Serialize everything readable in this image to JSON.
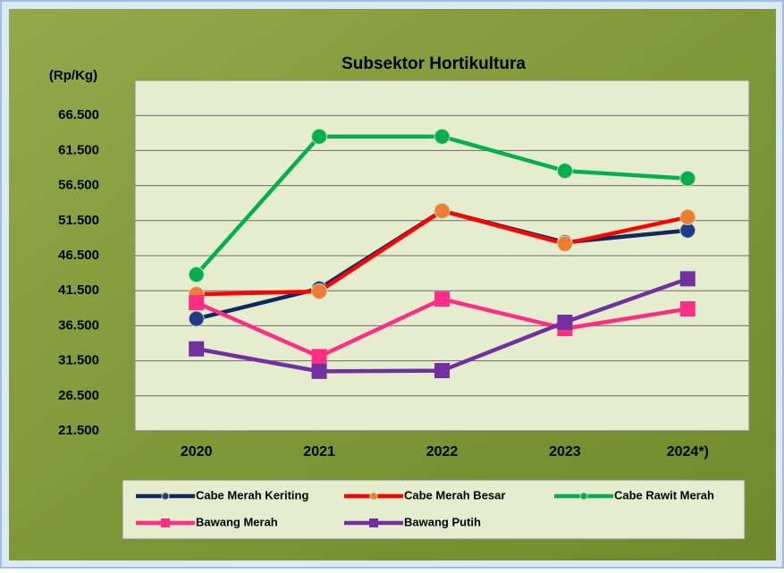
{
  "chart_data": {
    "type": "line",
    "title": "Subsektor Hortikultura",
    "ylabel": "(Rp/Kg)",
    "categories": [
      "2020",
      "2021",
      "2022",
      "2023",
      "2024*)"
    ],
    "ylim": [
      21500,
      71500
    ],
    "yticks": [
      {
        "value": 21500,
        "label": "21.500"
      },
      {
        "value": 26500,
        "label": "26.500"
      },
      {
        "value": 31500,
        "label": "31.500"
      },
      {
        "value": 36500,
        "label": "36.500"
      },
      {
        "value": 41500,
        "label": "41.500"
      },
      {
        "value": 46500,
        "label": "46.500"
      },
      {
        "value": 51500,
        "label": "51.500"
      },
      {
        "value": 56500,
        "label": "56.500"
      },
      {
        "value": 61500,
        "label": "61.500"
      },
      {
        "value": 66500,
        "label": "66.500"
      }
    ],
    "grid": true,
    "series": [
      {
        "name": "Cabe Merah Keriting",
        "color": "#0d2a5e",
        "marker": "circle",
        "marker_color": "#1f3c88",
        "values": [
          37500,
          41800,
          52900,
          48400,
          50100
        ]
      },
      {
        "name": "Cabe Merah Besar",
        "color": "#ff0000",
        "marker": "circle",
        "marker_color": "#ed7d31",
        "values": [
          41000,
          41400,
          52900,
          48200,
          52000
        ]
      },
      {
        "name": "Cabe Rawit Merah",
        "color": "#00b050",
        "marker": "circle",
        "marker_color": "#00b050",
        "values": [
          43800,
          63500,
          63500,
          58600,
          57500
        ]
      },
      {
        "name": "Bawang Merah",
        "color": "#ff2d84",
        "marker": "square",
        "marker_color": "#ff2d84",
        "values": [
          39800,
          32100,
          40300,
          36100,
          38900
        ]
      },
      {
        "name": "Bawang Putih",
        "color": "#7030a0",
        "marker": "square",
        "marker_color": "#7030a0",
        "values": [
          33200,
          30000,
          30100,
          37000,
          43200
        ]
      }
    ]
  }
}
